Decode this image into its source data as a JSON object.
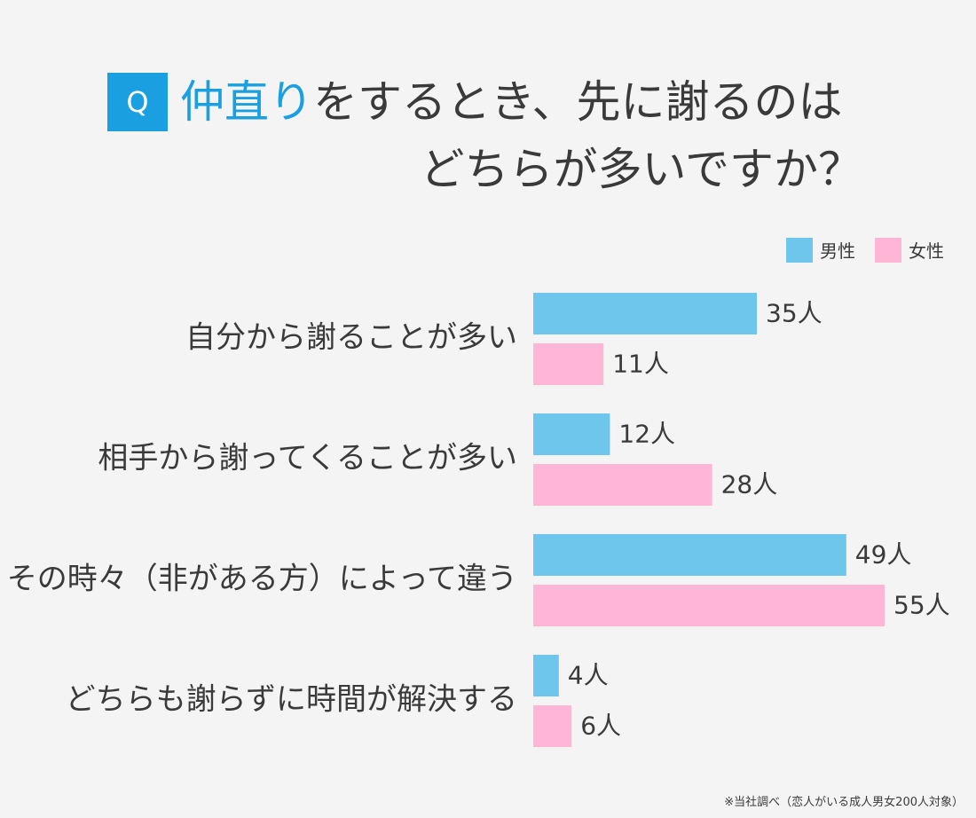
{
  "title": {
    "badge": "Q",
    "accent": "仲直り",
    "line1_rest": "をするとき、先に謝るのは",
    "line2": "どちらが多いですか？"
  },
  "colors": {
    "male": "#6ec6ec",
    "female": "#ffb5d6",
    "accent": "#1a9fe0"
  },
  "footnote": "※当社調べ（恋人がいる成人男女200人対象）",
  "chart_data": {
    "type": "bar",
    "orientation": "horizontal",
    "categories": [
      "自分から謝ることが多い",
      "相手から謝ってくることが多い",
      "その時々（非がある方）によって違う",
      "どちらも謝らずに時間が解決する"
    ],
    "series": [
      {
        "name": "男性",
        "values": [
          35,
          12,
          49,
          4
        ],
        "value_labels": [
          "35人",
          "12人",
          "49人",
          "4人"
        ]
      },
      {
        "name": "女性",
        "values": [
          11,
          28,
          55,
          6
        ],
        "value_labels": [
          "11人",
          "28人",
          "55人",
          "6人"
        ]
      }
    ],
    "legend": "top-right",
    "grid": false
  }
}
